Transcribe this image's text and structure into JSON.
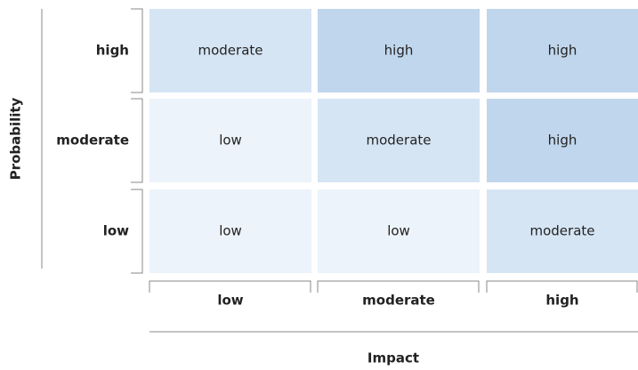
{
  "y_axis": {
    "title": "Probability",
    "levels": [
      "high",
      "moderate",
      "low"
    ]
  },
  "x_axis": {
    "title": "Impact",
    "levels": [
      "low",
      "moderate",
      "high"
    ]
  },
  "cells": [
    [
      "moderate",
      "high",
      "high"
    ],
    [
      "low",
      "moderate",
      "high"
    ],
    [
      "low",
      "low",
      "moderate"
    ]
  ],
  "colors": [
    "#edf3fa",
    "#d6e5f4",
    "#c0d6ec"
  ]
}
